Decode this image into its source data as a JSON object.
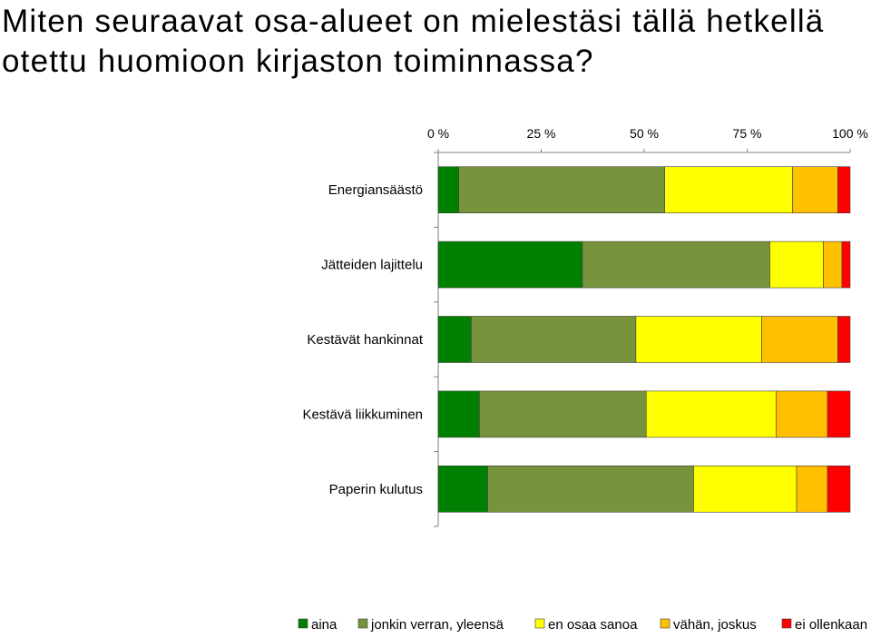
{
  "chart_data": {
    "type": "bar",
    "orientation": "horizontal",
    "stacked": "percent",
    "title": "Miten seuraavat osa-alueet on mielestäsi tällä hetkellä otettu huomioon kirjaston toiminnassa?",
    "categories": [
      "Energiansäästö",
      "Jätteiden lajittelu",
      "Kestävät hankinnat",
      "Kestävä liikkuminen",
      "Paperin kulutus"
    ],
    "series": [
      {
        "name": "aina",
        "color": "#008000",
        "values": [
          5,
          35,
          8,
          10,
          12
        ]
      },
      {
        "name": "jonkin verran, yleensä",
        "color": "#77933C",
        "values": [
          50,
          45.5,
          40,
          40.5,
          50
        ]
      },
      {
        "name": "en osaa sanoa",
        "color": "#FFFF00",
        "values": [
          31,
          13,
          30.5,
          31.5,
          25
        ]
      },
      {
        "name": "vähän, joskus",
        "color": "#FFC000",
        "values": [
          11,
          4.5,
          18.5,
          12.5,
          7.5
        ]
      },
      {
        "name": "ei ollenkaan",
        "color": "#FF0000",
        "values": [
          3,
          2,
          3,
          5.5,
          5.5
        ]
      }
    ],
    "xlim": [
      0,
      100
    ],
    "x_ticks": [
      "0 %",
      "25 %",
      "50 %",
      "75 %",
      "100 %"
    ],
    "axis_position": "top",
    "grid": false,
    "legend_position": "bottom"
  }
}
